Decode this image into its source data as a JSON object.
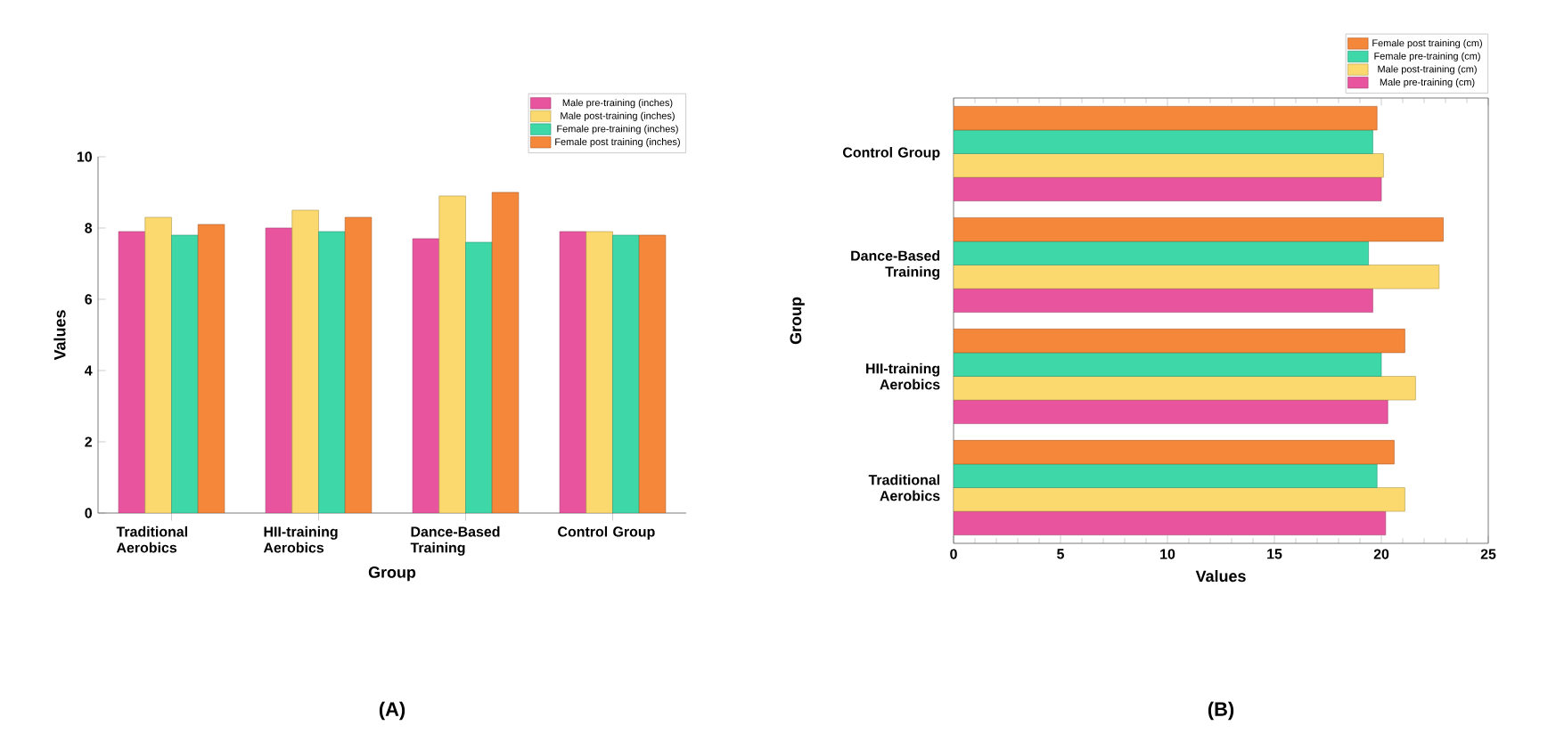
{
  "chart_data": [
    {
      "type": "bar",
      "xlabel": "Group",
      "ylabel": "Values",
      "categories": [
        "Traditional Aerobics",
        "HII-training Aerobics",
        "Dance-Based Training",
        "Control Group"
      ],
      "series": [
        {
          "name": "Male pre-training (inches)",
          "color": "#e8559e",
          "values": [
            7.9,
            8.0,
            7.7,
            7.9
          ]
        },
        {
          "name": "Male post-training (inches)",
          "color": "#fbd96e",
          "values": [
            8.3,
            8.5,
            8.9,
            7.9
          ]
        },
        {
          "name": "Female pre-training (inches)",
          "color": "#3ed8a8",
          "values": [
            7.8,
            7.9,
            7.6,
            7.8
          ]
        },
        {
          "name": "Female post training (inches)",
          "color": "#f5873a",
          "values": [
            8.1,
            8.3,
            9.0,
            7.8
          ]
        }
      ],
      "ylim": [
        0,
        10
      ],
      "yticks": [
        0,
        2,
        4,
        6,
        8,
        10
      ],
      "legend": "top right",
      "annotations": [
        "(A)"
      ]
    },
    {
      "type": "bar",
      "orientation": "horizontal",
      "xlabel": "Values",
      "ylabel": "Group",
      "categories": [
        "Control Group",
        "Dance-Based Training",
        "HII-training Aerobics",
        "Traditional Aerobics"
      ],
      "series": [
        {
          "name": "Male pre-training (cm)",
          "color": "#e8559e",
          "values": [
            20.0,
            19.6,
            20.3,
            20.2
          ]
        },
        {
          "name": "Male post-training (cm)",
          "color": "#fbd96e",
          "values": [
            20.1,
            22.7,
            21.6,
            21.1
          ]
        },
        {
          "name": "Female pre-training (cm)",
          "color": "#3ed8a8",
          "values": [
            19.6,
            19.4,
            20.0,
            19.8
          ]
        },
        {
          "name": "Female post training (cm)",
          "color": "#f5873a",
          "values": [
            19.8,
            22.9,
            21.1,
            20.6
          ]
        }
      ],
      "xlim": [
        0,
        25
      ],
      "xticks": [
        0,
        5,
        10,
        15,
        20,
        25
      ],
      "legend": "top right",
      "annotations": [
        "(B)"
      ]
    }
  ]
}
